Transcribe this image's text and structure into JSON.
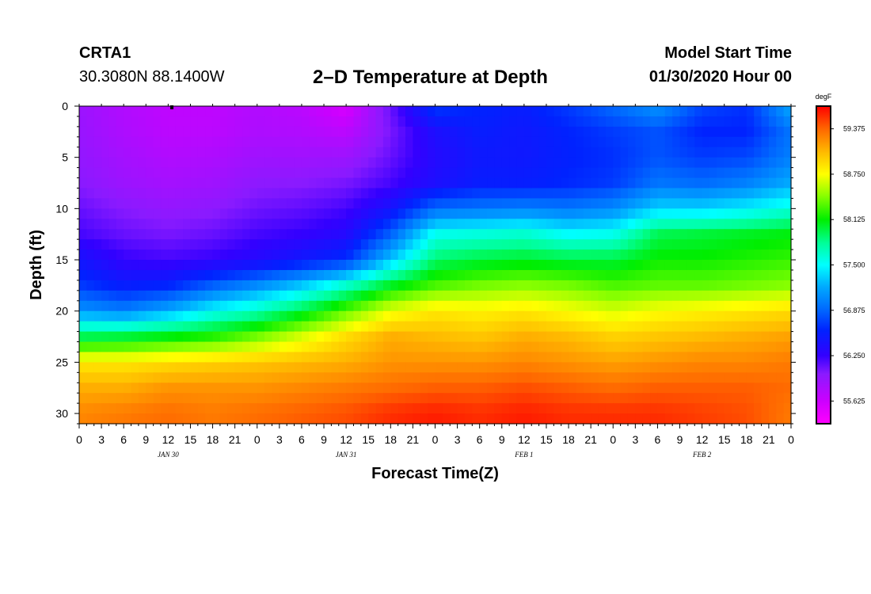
{
  "header": {
    "station_id": "CRTA1",
    "station_coords": "30.3080N 88.1400W",
    "title": "2–D Temperature at Depth",
    "start_label": "Model Start Time",
    "start_value": "01/30/2020 Hour 00"
  },
  "chart_data": {
    "type": "heatmap",
    "title": "2–D Temperature at Depth",
    "xlabel": "Forecast Time(Z)",
    "ylabel": "Depth (ft)",
    "x_hours_range": [
      0,
      96
    ],
    "x_tick_step_hours": 3,
    "x_tick_labels": [
      "0",
      "3",
      "6",
      "9",
      "12",
      "15",
      "18",
      "21",
      "0",
      "3",
      "6",
      "9",
      "12",
      "15",
      "18",
      "21",
      "0",
      "3",
      "6",
      "9",
      "12",
      "15",
      "18",
      "21",
      "0",
      "3",
      "6",
      "9",
      "12",
      "15",
      "18",
      "21",
      "0"
    ],
    "date_labels": [
      {
        "hour": 12,
        "label": "JAN 30"
      },
      {
        "hour": 36,
        "label": "JAN 31"
      },
      {
        "hour": 60,
        "label": "FEB 1"
      },
      {
        "hour": 84,
        "label": "FEB 2"
      }
    ],
    "y_range": [
      0,
      31
    ],
    "y_tick_labels": [
      0,
      5,
      10,
      15,
      20,
      25,
      30
    ],
    "units": "degF",
    "colorbar_range": [
      55.3125,
      59.6875
    ],
    "colorbar_ticks": [
      "55.625",
      "56.250",
      "56.875",
      "57.500",
      "58.125",
      "58.750",
      "59.375"
    ],
    "colorbar_stops": [
      {
        "value": 55.3125,
        "color": "#ff00ff"
      },
      {
        "value": 55.625,
        "color": "#cc00ff"
      },
      {
        "value": 56.0,
        "color": "#8a1aff"
      },
      {
        "value": 56.25,
        "color": "#3300ff"
      },
      {
        "value": 56.6,
        "color": "#0022ff"
      },
      {
        "value": 56.875,
        "color": "#0066ff"
      },
      {
        "value": 57.2,
        "color": "#00aaff"
      },
      {
        "value": 57.5,
        "color": "#00ffff"
      },
      {
        "value": 57.8,
        "color": "#00ff99"
      },
      {
        "value": 58.125,
        "color": "#00ee00"
      },
      {
        "value": 58.45,
        "color": "#88ff00"
      },
      {
        "value": 58.75,
        "color": "#ffff00"
      },
      {
        "value": 59.05,
        "color": "#ffbb00"
      },
      {
        "value": 59.375,
        "color": "#ff6600"
      },
      {
        "value": 59.6875,
        "color": "#ff0000"
      }
    ],
    "grid_hours": [
      0,
      6,
      12,
      18,
      24,
      30,
      36,
      42,
      48,
      54,
      60,
      66,
      72,
      78,
      84,
      90,
      96
    ],
    "grid_depths": [
      0,
      2.5,
      5,
      7.5,
      10,
      12.5,
      15,
      17.5,
      20,
      22.5,
      25,
      27.5,
      30,
      31
    ],
    "values": [
      [
        55.9,
        55.78,
        55.7,
        55.7,
        55.78,
        55.72,
        55.55,
        56.1,
        56.7,
        56.6,
        56.55,
        56.7,
        56.9,
        57.1,
        56.75,
        56.65,
        57.2
      ],
      [
        55.92,
        55.8,
        55.72,
        55.72,
        55.8,
        55.78,
        55.72,
        56.05,
        56.4,
        56.55,
        56.5,
        56.6,
        56.7,
        56.8,
        56.6,
        56.6,
        56.95
      ],
      [
        55.95,
        55.85,
        55.78,
        55.8,
        55.88,
        55.88,
        55.9,
        56.1,
        56.35,
        56.5,
        56.5,
        56.58,
        56.65,
        56.8,
        56.7,
        56.75,
        57.0
      ],
      [
        56.0,
        55.9,
        55.85,
        55.88,
        55.98,
        56.0,
        56.05,
        56.2,
        56.4,
        56.55,
        56.55,
        56.62,
        56.7,
        56.95,
        56.9,
        57.0,
        57.2
      ],
      [
        56.1,
        56.0,
        55.95,
        55.98,
        56.08,
        56.12,
        56.2,
        56.45,
        56.9,
        56.95,
        57.0,
        56.95,
        57.05,
        57.35,
        57.35,
        57.45,
        57.6
      ],
      [
        56.2,
        56.1,
        56.05,
        56.1,
        56.2,
        56.25,
        56.35,
        56.85,
        57.55,
        57.6,
        57.65,
        57.5,
        57.55,
        57.95,
        58.0,
        58.05,
        58.1
      ],
      [
        56.45,
        56.25,
        56.2,
        56.25,
        56.35,
        56.5,
        56.65,
        57.3,
        57.9,
        58.0,
        58.05,
        58.0,
        58.0,
        58.15,
        58.15,
        58.2,
        58.25
      ],
      [
        56.7,
        56.55,
        56.6,
        56.85,
        57.05,
        57.3,
        57.65,
        58.05,
        58.3,
        58.4,
        58.45,
        58.4,
        58.3,
        58.35,
        58.35,
        58.4,
        58.45
      ],
      [
        57.1,
        57.0,
        57.2,
        57.5,
        57.7,
        58.0,
        58.35,
        58.7,
        58.85,
        58.8,
        58.85,
        58.75,
        58.65,
        58.75,
        58.8,
        58.85,
        58.9
      ],
      [
        57.95,
        58.0,
        58.1,
        58.2,
        58.4,
        58.65,
        58.9,
        59.1,
        59.05,
        59.0,
        59.1,
        59.05,
        58.95,
        59.0,
        59.05,
        59.1,
        59.15
      ],
      [
        58.85,
        58.85,
        58.9,
        58.95,
        59.0,
        59.05,
        59.1,
        59.2,
        59.2,
        59.2,
        59.25,
        59.2,
        59.15,
        59.2,
        59.25,
        59.25,
        59.3
      ],
      [
        59.1,
        59.1,
        59.2,
        59.2,
        59.2,
        59.25,
        59.3,
        59.35,
        59.4,
        59.4,
        59.45,
        59.4,
        59.35,
        59.4,
        59.4,
        59.4,
        59.35
      ],
      [
        59.25,
        59.3,
        59.35,
        59.3,
        59.35,
        59.4,
        59.45,
        59.55,
        59.6,
        59.55,
        59.6,
        59.55,
        59.55,
        59.55,
        59.5,
        59.45,
        59.3
      ],
      [
        59.25,
        59.3,
        59.35,
        59.3,
        59.35,
        59.4,
        59.45,
        59.55,
        59.6,
        59.55,
        59.6,
        59.55,
        59.55,
        59.55,
        59.5,
        59.45,
        59.3
      ]
    ]
  }
}
